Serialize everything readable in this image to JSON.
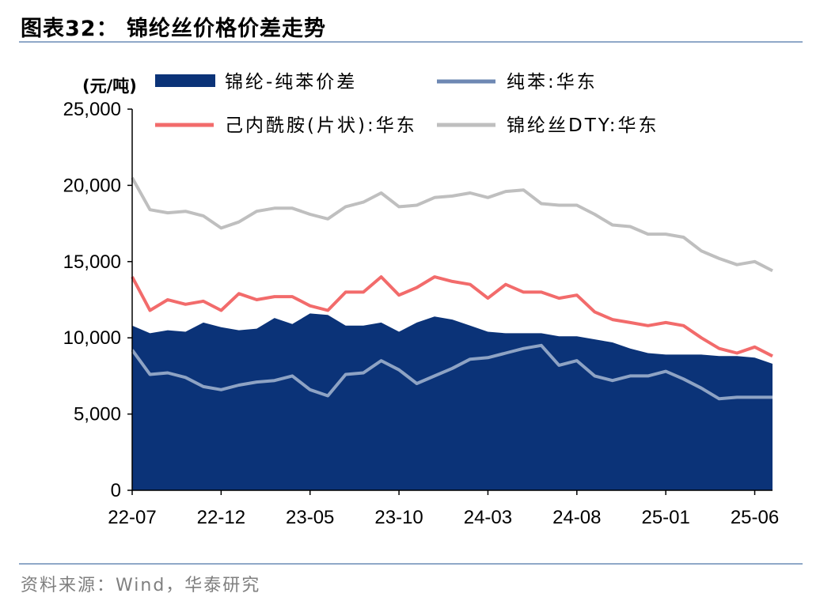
{
  "title": "图表32：  锦纶丝价格价差走势",
  "source": "资料来源：Wind，华泰研究",
  "chart_data": {
    "type": "area+line",
    "unit": "(元/吨)",
    "ylim": [
      0,
      25000
    ],
    "yticks": [
      "0",
      "5,000",
      "10,000",
      "15,000",
      "20,000",
      "25,000"
    ],
    "xticks": [
      "22-07",
      "22-12",
      "23-05",
      "23-10",
      "24-03",
      "24-08",
      "25-01",
      "25-06"
    ],
    "legend_placement": "top",
    "x": [
      "2022-07",
      "2022-08",
      "2022-09",
      "2022-10",
      "2022-11",
      "2022-12",
      "2023-01",
      "2023-02",
      "2023-03",
      "2023-04",
      "2023-05",
      "2023-06",
      "2023-07",
      "2023-08",
      "2023-09",
      "2023-10",
      "2023-11",
      "2023-12",
      "2024-01",
      "2024-02",
      "2024-03",
      "2024-04",
      "2024-05",
      "2024-06",
      "2024-07",
      "2024-08",
      "2024-09",
      "2024-10",
      "2024-11",
      "2024-12",
      "2025-01",
      "2025-02",
      "2025-03",
      "2025-04",
      "2025-05",
      "2025-06",
      "2025-07"
    ],
    "series": [
      {
        "name": "锦纶-纯苯价差",
        "style": "area",
        "color": "#0b3378",
        "values": [
          10800,
          10300,
          10500,
          10400,
          11000,
          10700,
          10500,
          10600,
          11300,
          10900,
          11600,
          11500,
          10800,
          10800,
          11000,
          10400,
          11000,
          11400,
          11200,
          10800,
          10400,
          10300,
          10300,
          10300,
          10100,
          10100,
          9900,
          9700,
          9300,
          9000,
          8900,
          8900,
          8900,
          8800,
          8800,
          8700,
          8300
        ]
      },
      {
        "name": "纯苯:华东",
        "style": "line",
        "color": "#8ea3c4",
        "values": [
          9200,
          7600,
          7700,
          7400,
          6800,
          6600,
          6900,
          7100,
          7200,
          7500,
          6600,
          6200,
          7600,
          7700,
          8500,
          7900,
          7000,
          7500,
          8000,
          8600,
          8700,
          9000,
          9300,
          9500,
          8200,
          8500,
          7500,
          7200,
          7500,
          7500,
          7800,
          7300,
          6700,
          6000,
          6100,
          6100,
          6100
        ]
      },
      {
        "name": "己内酰胺(片状):华东",
        "style": "line",
        "color": "#f26b6b",
        "values": [
          14000,
          11800,
          12500,
          12200,
          12400,
          11800,
          12900,
          12500,
          12700,
          12700,
          12100,
          11800,
          13000,
          13000,
          14000,
          12800,
          13300,
          14000,
          13700,
          13500,
          12600,
          13500,
          13000,
          13000,
          12600,
          12800,
          11700,
          11200,
          11000,
          10800,
          11000,
          10800,
          10000,
          9300,
          9000,
          9400,
          8800
        ]
      },
      {
        "name": "锦纶丝DTY:华东",
        "style": "line",
        "color": "#bfbfbf",
        "values": [
          20500,
          18400,
          18200,
          18300,
          18000,
          17200,
          17600,
          18300,
          18500,
          18500,
          18100,
          17800,
          18600,
          18900,
          19500,
          18600,
          18700,
          19200,
          19300,
          19500,
          19200,
          19600,
          19700,
          18800,
          18700,
          18700,
          18100,
          17400,
          17300,
          16800,
          16800,
          16600,
          15700,
          15200,
          14800,
          15000,
          14400
        ]
      }
    ]
  }
}
